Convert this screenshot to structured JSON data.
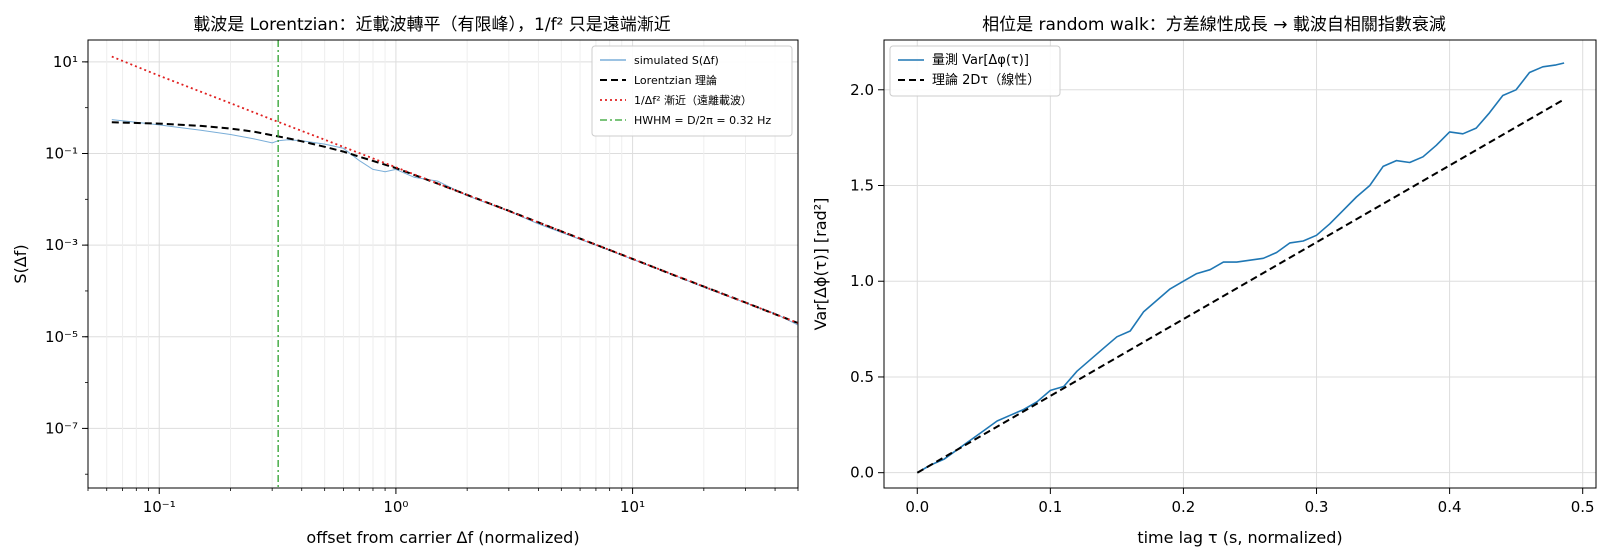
{
  "figure": {
    "background": "#ffffff"
  },
  "chart_data": [
    {
      "type": "line",
      "title": "載波是 Lorentzian：近載波轉平（有限峰），1/f² 只是遠端漸近",
      "xlabel": "offset from carrier Δf (normalized)",
      "ylabel": "S(Δf)",
      "xscale": "log",
      "yscale": "log",
      "xlim": [
        0.05,
        50
      ],
      "ylim": [
        5e-09,
        30
      ],
      "xticks": [
        0.1,
        1,
        10
      ],
      "xtick_labels": [
        "10⁻¹",
        "10⁰",
        "10¹"
      ],
      "yticks": [
        1e-07,
        1e-05,
        0.001,
        0.1,
        10
      ],
      "ytick_labels": [
        "10⁻⁷",
        "10⁻⁵",
        "10⁻³",
        "10⁻¹",
        "10¹"
      ],
      "grid": true,
      "legend_position": "top-right",
      "series": [
        {
          "name": "simulated S(Δf)",
          "color": "#7aaed8",
          "style": "solid",
          "x": [
            0.063,
            0.1,
            0.15,
            0.2,
            0.25,
            0.3,
            0.318,
            0.35,
            0.4,
            0.5,
            0.6,
            0.7,
            0.8,
            0.9,
            1.0,
            1.2,
            1.5,
            2,
            3,
            4,
            5,
            7,
            10,
            15,
            20,
            30,
            40,
            50
          ],
          "y": [
            0.55,
            0.42,
            0.32,
            0.26,
            0.21,
            0.17,
            0.19,
            0.2,
            0.19,
            0.16,
            0.13,
            0.07,
            0.045,
            0.04,
            0.045,
            0.03,
            0.025,
            0.012,
            0.0055,
            0.0029,
            0.0019,
            0.001,
            0.00049,
            0.00022,
            0.00012,
            5.5e-05,
            3.2e-05,
            1.8e-05
          ]
        },
        {
          "name": "Lorentzian 理論",
          "color": "#000000",
          "style": "dashed",
          "x": [
            0.063,
            0.1,
            0.15,
            0.2,
            0.25,
            0.3,
            0.35,
            0.4,
            0.5,
            0.6,
            0.7,
            0.8,
            1.0,
            1.5,
            2,
            3,
            5,
            7,
            10,
            15,
            20,
            30,
            40,
            50
          ],
          "y": [
            0.48,
            0.45,
            0.4,
            0.35,
            0.3,
            0.25,
            0.215,
            0.185,
            0.14,
            0.11,
            0.085,
            0.069,
            0.048,
            0.022,
            0.0125,
            0.0056,
            0.002,
            0.00102,
            0.0005,
            0.00022,
            0.000125,
            5.6e-05,
            3.1e-05,
            2e-05
          ]
        },
        {
          "name": "1/Δf² 漸近（遠離載波）",
          "color": "#e02020",
          "style": "dotted",
          "x": [
            0.063,
            0.1,
            0.2,
            0.3,
            0.5,
            1,
            2,
            5,
            10,
            20,
            50
          ],
          "y": [
            13,
            5,
            1.25,
            0.55,
            0.2,
            0.05,
            0.0125,
            0.002,
            0.0005,
            0.000125,
            2e-05
          ]
        },
        {
          "name": "HWHM = D/2π = 0.32 Hz",
          "color": "#2ca02c",
          "style": "dashdot",
          "vline_x": 0.318
        }
      ]
    },
    {
      "type": "line",
      "title": "相位是 random walk：方差線性成長 → 載波自相關指數衰減",
      "xlabel": "time lag τ (s, normalized)",
      "ylabel": "Var[Δϕ(τ)] [rad²]",
      "xlim": [
        -0.025,
        0.51
      ],
      "ylim": [
        -0.08,
        2.26
      ],
      "xticks": [
        0.0,
        0.1,
        0.2,
        0.3,
        0.4,
        0.5
      ],
      "xtick_labels": [
        "0.0",
        "0.1",
        "0.2",
        "0.3",
        "0.4",
        "0.5"
      ],
      "yticks": [
        0.0,
        0.5,
        1.0,
        1.5,
        2.0
      ],
      "ytick_labels": [
        "0.0",
        "0.5",
        "1.0",
        "1.5",
        "2.0"
      ],
      "grid": true,
      "legend_position": "top-left",
      "series": [
        {
          "name": "量測 Var[Δφ(τ)]",
          "color": "#1f77b4",
          "style": "solid",
          "x": [
            0.0,
            0.01,
            0.02,
            0.03,
            0.04,
            0.05,
            0.06,
            0.07,
            0.08,
            0.09,
            0.1,
            0.11,
            0.12,
            0.13,
            0.14,
            0.15,
            0.16,
            0.17,
            0.18,
            0.19,
            0.2,
            0.21,
            0.22,
            0.23,
            0.24,
            0.25,
            0.26,
            0.27,
            0.28,
            0.29,
            0.3,
            0.31,
            0.32,
            0.33,
            0.34,
            0.35,
            0.36,
            0.37,
            0.38,
            0.39,
            0.4,
            0.41,
            0.42,
            0.43,
            0.44,
            0.45,
            0.46,
            0.47,
            0.48,
            0.486
          ],
          "y": [
            0.0,
            0.04,
            0.07,
            0.12,
            0.17,
            0.22,
            0.27,
            0.3,
            0.33,
            0.37,
            0.43,
            0.45,
            0.53,
            0.59,
            0.65,
            0.71,
            0.74,
            0.84,
            0.9,
            0.96,
            1.0,
            1.04,
            1.06,
            1.1,
            1.1,
            1.11,
            1.12,
            1.15,
            1.2,
            1.21,
            1.24,
            1.3,
            1.37,
            1.44,
            1.5,
            1.6,
            1.63,
            1.62,
            1.65,
            1.71,
            1.78,
            1.77,
            1.8,
            1.88,
            1.97,
            2.0,
            2.09,
            2.12,
            2.13,
            2.14
          ]
        },
        {
          "name": "理論 2Dτ（線性）",
          "color": "#000000",
          "style": "dashed",
          "x": [
            0.0,
            0.486
          ],
          "y": [
            0.0,
            1.95
          ]
        }
      ]
    }
  ]
}
